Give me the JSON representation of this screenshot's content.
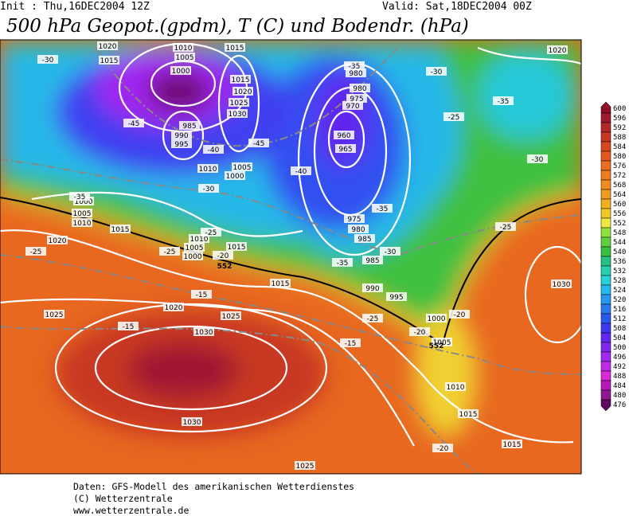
{
  "header": {
    "init": "Init : Thu,16DEC2004 12Z",
    "valid": "Valid: Sat,18DEC2004 00Z",
    "title": "500 hPa Geopot.(gpdm), T (C) und Bodendr. (hPa)"
  },
  "colorbar": {
    "labels": [
      600,
      596,
      592,
      588,
      584,
      580,
      576,
      572,
      568,
      564,
      560,
      556,
      552,
      548,
      544,
      540,
      536,
      532,
      528,
      524,
      520,
      516,
      512,
      508,
      504,
      500,
      496,
      492,
      488,
      484,
      480,
      476
    ],
    "colors": [
      "#8c1028",
      "#a01830",
      "#b42828",
      "#c83820",
      "#d84820",
      "#e45820",
      "#ec6c20",
      "#f07c20",
      "#f08c20",
      "#f09c20",
      "#f0b020",
      "#f0c828",
      "#f0e840",
      "#90e040",
      "#60d040",
      "#38c040",
      "#28c080",
      "#28d0b0",
      "#28d0d8",
      "#28b8f0",
      "#2898f0",
      "#2878f0",
      "#2858f0",
      "#4038f0",
      "#6028f0",
      "#8028f0",
      "#a028f0",
      "#c028e8",
      "#d828d8",
      "#b818b8",
      "#901890",
      "#600860"
    ]
  },
  "map": {
    "pressure_labels": [
      1020,
      1015,
      1010,
      1005,
      1000,
      1015,
      1015,
      1020,
      1025,
      1030,
      985,
      990,
      995,
      1010,
      1005,
      1000,
      980,
      980,
      975,
      970,
      960,
      965,
      1000,
      1005,
      1010,
      1015,
      1020,
      1010,
      1005,
      1000,
      1015,
      975,
      980,
      985,
      985,
      990,
      995,
      1015,
      1020,
      1025,
      1025,
      1030,
      1030,
      1000,
      1005,
      1010,
      1015,
      1015,
      1025,
      1020,
      1030
    ],
    "temperature_labels": [
      -30,
      -45,
      -40,
      -45,
      -30,
      -35,
      -25,
      -25,
      -25,
      -20,
      -15,
      -15,
      -40,
      -35,
      -30,
      -35,
      -25,
      -30,
      -35,
      -35,
      -30,
      -25,
      -25,
      -20,
      -20,
      -15,
      -20
    ],
    "height_labels": [
      552,
      552
    ]
  },
  "footer": {
    "lines": [
      "Daten: GFS-Modell des amerikanischen Wetterdienstes",
      "(C) Wetterzentrale",
      "www.wetterzentrale.de"
    ]
  }
}
